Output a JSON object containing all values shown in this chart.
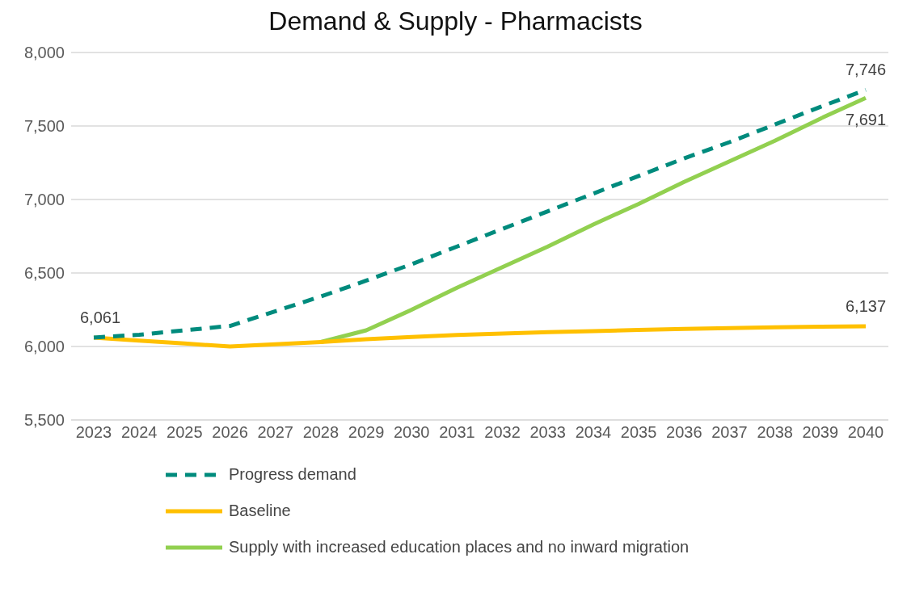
{
  "chart_data": {
    "type": "line",
    "title": "Demand & Supply - Pharmacists",
    "categories": [
      "2023",
      "2024",
      "2025",
      "2026",
      "2027",
      "2028",
      "2029",
      "2030",
      "2031",
      "2032",
      "2033",
      "2034",
      "2035",
      "2036",
      "2037",
      "2038",
      "2039",
      "2040"
    ],
    "ylim": [
      5500,
      8000
    ],
    "yticks": [
      {
        "value": 5500,
        "label": "5,500"
      },
      {
        "value": 6000,
        "label": "6,000"
      },
      {
        "value": 6500,
        "label": "6,500"
      },
      {
        "value": 7000,
        "label": "7,000"
      },
      {
        "value": 7500,
        "label": "7,500"
      },
      {
        "value": 8000,
        "label": "8,000"
      }
    ],
    "grid": "y",
    "legend": "bottom",
    "marker": "none",
    "series": [
      {
        "name": "Progress demand",
        "color": "#008b7d",
        "line_style": "dashed",
        "values": [
          6061,
          6080,
          6110,
          6140,
          6240,
          6340,
          6448,
          6560,
          6680,
          6800,
          6920,
          7040,
          7160,
          7280,
          7390,
          7510,
          7630,
          7746
        ],
        "value_labels": [
          null,
          null,
          null,
          null,
          null,
          null,
          null,
          null,
          null,
          null,
          null,
          null,
          null,
          null,
          null,
          null,
          null,
          "7,746"
        ]
      },
      {
        "name": "Baseline",
        "color": "#ffc000",
        "values": [
          6061,
          6040,
          6020,
          6000,
          6015,
          6030,
          6050,
          6065,
          6078,
          6088,
          6097,
          6105,
          6112,
          6119,
          6125,
          6130,
          6134,
          6137
        ],
        "value_labels": [
          "6,061",
          null,
          null,
          null,
          null,
          null,
          null,
          null,
          null,
          null,
          null,
          null,
          null,
          null,
          null,
          null,
          null,
          "6,137"
        ]
      },
      {
        "name": "Supply with increased education places and no inward migration",
        "color": "#92d050",
        "values": [
          null,
          null,
          null,
          null,
          null,
          6030,
          6110,
          6250,
          6400,
          6540,
          6680,
          6830,
          6970,
          7120,
          7260,
          7400,
          7550,
          7691
        ],
        "value_labels": [
          null,
          null,
          null,
          null,
          null,
          null,
          null,
          null,
          null,
          null,
          null,
          null,
          null,
          null,
          null,
          null,
          null,
          "7,691"
        ]
      }
    ]
  }
}
